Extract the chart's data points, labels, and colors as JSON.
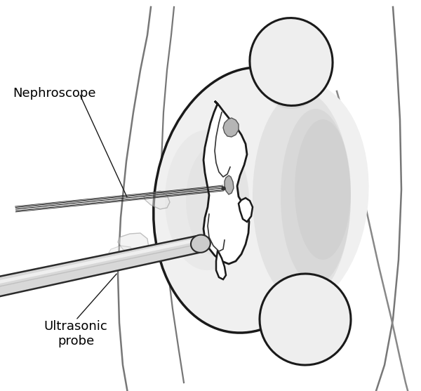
{
  "bg_color": "#ffffff",
  "lc": "#1a1a1a",
  "gray1": "#aaaaaa",
  "gray2": "#888888",
  "gray3": "#cccccc",
  "kidney_fill": "#f2f2f2",
  "cavity_fill": "#ffffff",
  "label_nephroscope": "Nephroscope",
  "label_ultrasonic": "Ultrasonic\nprobe",
  "label_fontsize": 13,
  "figsize": [
    6.0,
    5.57
  ],
  "dpi": 100
}
